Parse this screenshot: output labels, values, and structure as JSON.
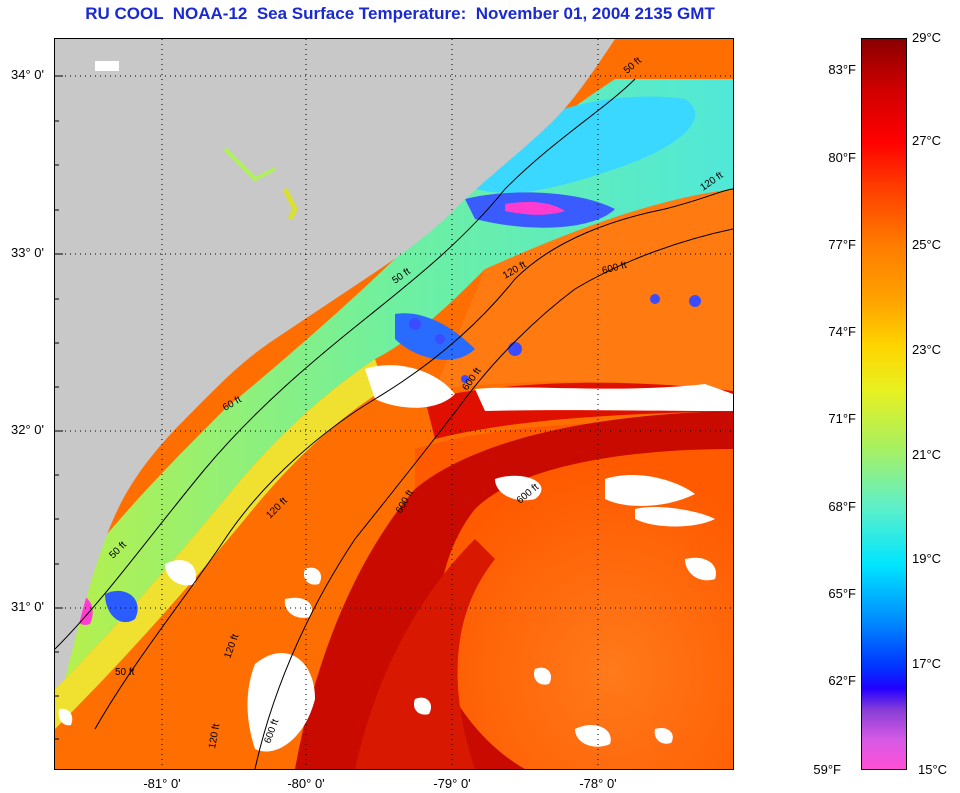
{
  "title": "RU COOL  NOAA-12  Sea Surface Temperature:  November 01, 2004 2135 GMT",
  "map": {
    "lat_labels": [
      "34° 0'",
      "33° 0'",
      "32° 0'",
      "31° 0'"
    ],
    "lon_labels": [
      "-81° 0'",
      "-80° 0'",
      "-79° 0'",
      "-78° 0'"
    ],
    "contour_labels": [
      "50 ft",
      "120 ft",
      "600 ft",
      "50 ft",
      "120 ft",
      "600 ft",
      "60 ft",
      "120 ft",
      "600 ft",
      "50 ft",
      "120 ft",
      "600 ft",
      "50 ft",
      "120 ft",
      "600 ft"
    ],
    "colors": {
      "land": "#c8c8c8",
      "cloud": "#ffffff",
      "gulfstream": "#c80a00",
      "shelf": "#ff6a00",
      "coastal": "#aef05a",
      "cold": "#2a7bff"
    }
  },
  "colorbar": {
    "fahrenheit": [
      "83°F",
      "80°F",
      "77°F",
      "74°F",
      "71°F",
      "68°F",
      "65°F",
      "62°F",
      "59°F"
    ],
    "celsius": [
      "29°C",
      "27°C",
      "25°C",
      "23°C",
      "21°C",
      "19°C",
      "17°C",
      "15°C"
    ]
  }
}
